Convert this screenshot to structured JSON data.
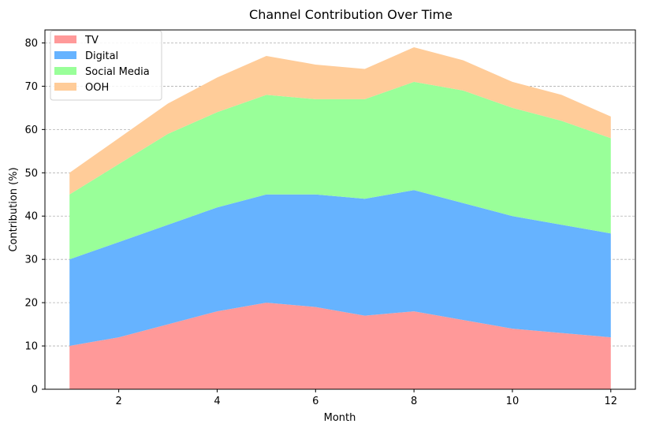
{
  "chart_data": {
    "type": "area",
    "stacked": true,
    "title": "Channel Contribution Over Time",
    "xlabel": "Month",
    "ylabel": "Contribution (%)",
    "x": [
      1,
      2,
      3,
      4,
      5,
      6,
      7,
      8,
      9,
      10,
      11,
      12
    ],
    "xlim": [
      0.5,
      12.5
    ],
    "ylim": [
      0,
      83
    ],
    "xticks": [
      2,
      4,
      6,
      8,
      10,
      12
    ],
    "yticks": [
      0,
      10,
      20,
      30,
      40,
      50,
      60,
      70,
      80
    ],
    "grid": "y-dashed",
    "legend_position": "top-left",
    "series": [
      {
        "name": "TV",
        "color": "#ff9999",
        "values": [
          10,
          12,
          15,
          18,
          20,
          19,
          17,
          18,
          16,
          14,
          13,
          12
        ]
      },
      {
        "name": "Digital",
        "color": "#66b3ff",
        "values": [
          20,
          22,
          23,
          24,
          25,
          26,
          27,
          28,
          27,
          26,
          25,
          24
        ]
      },
      {
        "name": "Social Media",
        "color": "#99ff99",
        "values": [
          15,
          18,
          21,
          22,
          23,
          22,
          23,
          25,
          26,
          25,
          24,
          22
        ]
      },
      {
        "name": "OOH",
        "color": "#ffcc99",
        "values": [
          5,
          6,
          7,
          8,
          9,
          8,
          7,
          8,
          7,
          6,
          6,
          5
        ]
      }
    ]
  }
}
